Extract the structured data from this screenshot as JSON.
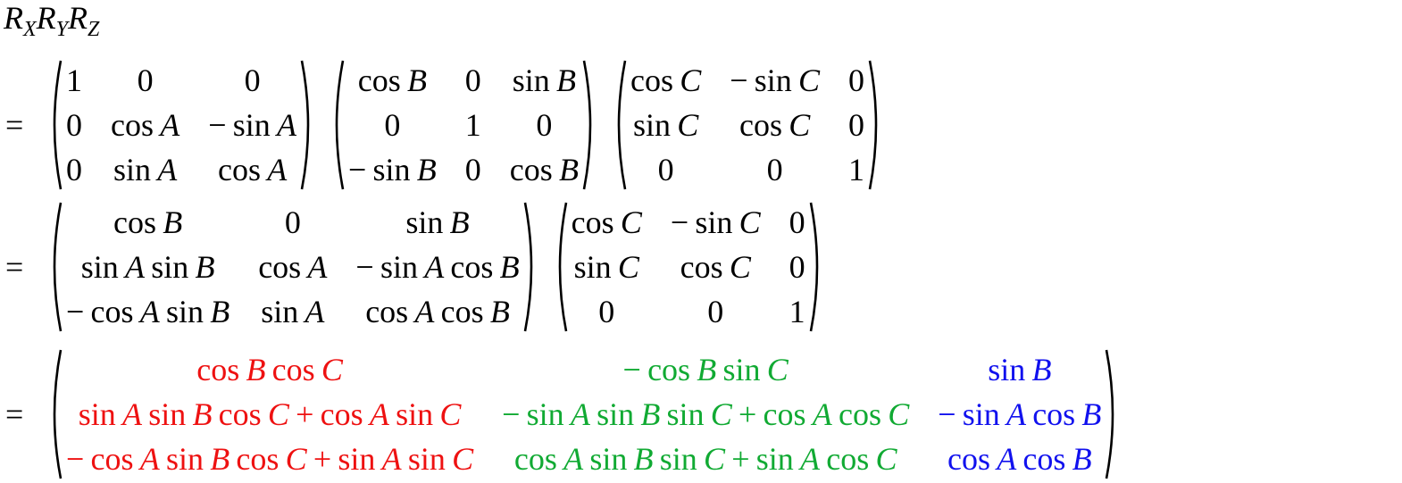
{
  "title": {
    "parts": [
      [
        "R",
        "X"
      ],
      [
        "R",
        "Y"
      ],
      [
        "R",
        "Z"
      ]
    ]
  },
  "equals": "=",
  "colors": {
    "col1": "#ee1111",
    "col2": "#11aa33",
    "col3": "#1111ee"
  },
  "line1": {
    "rx": [
      [
        "1",
        "0",
        "0"
      ],
      [
        "0",
        "cos A",
        "− sin A"
      ],
      [
        "0",
        "sin A",
        "cos A"
      ]
    ],
    "ry": [
      [
        "cos B",
        "0",
        "sin B"
      ],
      [
        "0",
        "1",
        "0"
      ],
      [
        "− sin B",
        "0",
        "cos B"
      ]
    ],
    "rz": [
      [
        "cos C",
        "− sin C",
        "0"
      ],
      [
        "sin C",
        "cos C",
        "0"
      ],
      [
        "0",
        "0",
        "1"
      ]
    ]
  },
  "line2": {
    "rxry": [
      [
        "cos B",
        "0",
        "sin B"
      ],
      [
        "sin A sin B",
        "cos A",
        "− sin A cos B"
      ],
      [
        "− cos A sin B",
        "sin A",
        "cos A cos B"
      ]
    ],
    "rz": [
      [
        "cos C",
        "− sin C",
        "0"
      ],
      [
        "sin C",
        "cos C",
        "0"
      ],
      [
        "0",
        "0",
        "1"
      ]
    ]
  },
  "line3": {
    "result": [
      [
        "cos B cos C",
        "− cos B sin C",
        "sin B"
      ],
      [
        "sin A sin B cos C + cos A sin C",
        "− sin A sin B sin C + cos A cos C",
        "− sin A cos B"
      ],
      [
        "− cos A sin B cos C + sin A sin C",
        "cos A sin B sin C + sin A cos C",
        "cos A cos B"
      ]
    ]
  }
}
